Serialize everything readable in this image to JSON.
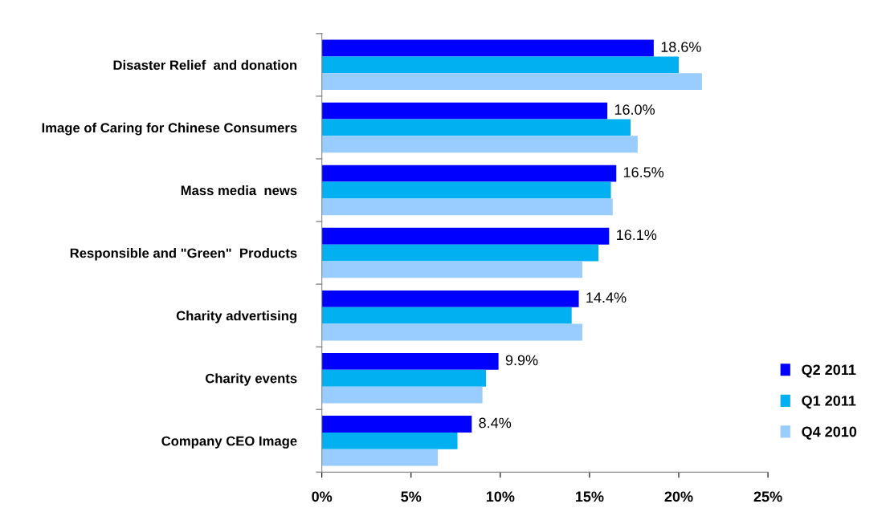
{
  "chart_data": {
    "type": "bar",
    "orientation": "horizontal",
    "categories": [
      "Disaster Relief  and donation",
      "Image of Caring for Chinese Consumers",
      "Mass media  news",
      "Responsible and \"Green\"  Products",
      "Charity advertising",
      "Charity events",
      "Company CEO Image"
    ],
    "series": [
      {
        "name": "Q2 2011",
        "color": "#0000ff",
        "values": [
          18.6,
          16.0,
          16.5,
          16.1,
          14.4,
          9.9,
          8.4
        ],
        "value_labels": [
          "18.6%",
          "16.0%",
          "16.5%",
          "16.1%",
          "14.4%",
          "9.9%",
          "8.4%"
        ]
      },
      {
        "name": "Q1 2011",
        "color": "#00b0f0",
        "values": [
          20.0,
          17.3,
          16.2,
          15.5,
          14.0,
          9.2,
          7.6
        ]
      },
      {
        "name": "Q4 2010",
        "color": "#99ccff",
        "values": [
          21.3,
          17.7,
          16.3,
          14.6,
          14.6,
          9.0,
          6.5
        ]
      }
    ],
    "xlim": [
      0,
      25
    ],
    "xticks": [
      {
        "value": 0,
        "label": "0%"
      },
      {
        "value": 5,
        "label": "5%"
      },
      {
        "value": 10,
        "label": "10%"
      },
      {
        "value": 15,
        "label": "15%"
      },
      {
        "value": 20,
        "label": "20%"
      },
      {
        "value": 25,
        "label": "25%"
      }
    ],
    "legend": "right",
    "grid": false
  }
}
